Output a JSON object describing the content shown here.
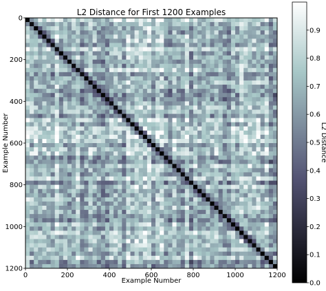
{
  "chart_data": {
    "type": "heatmap",
    "title": "L2 Distance for First 1200 Examples",
    "xlabel": "Example Number",
    "ylabel": "Example Number",
    "xlim": [
      0,
      1200
    ],
    "ylim": [
      0,
      1200
    ],
    "y_inverted": true,
    "x_ticks": [
      "0",
      "200",
      "400",
      "600",
      "800",
      "1000",
      "1200"
    ],
    "y_ticks": [
      "0",
      "200",
      "400",
      "600",
      "800",
      "1000",
      "1200"
    ],
    "colorbar": {
      "label": "L2 Distance",
      "range": [
        0.0,
        1.0
      ],
      "ticks": [
        "0.0",
        "0.1",
        "0.2",
        "0.3",
        "0.4",
        "0.5",
        "0.6",
        "0.7",
        "0.8",
        "0.9"
      ],
      "colormap": "bone"
    },
    "diagonal_value": 0.0,
    "off_diagonal_typical_range": [
      0.3,
      1.0
    ],
    "grid": false
  }
}
